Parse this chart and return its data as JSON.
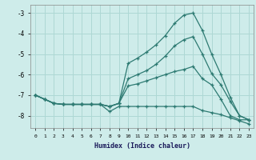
{
  "xlabel": "Humidex (Indice chaleur)",
  "bg_color": "#ceecea",
  "grid_color": "#aed8d4",
  "line_color": "#2d7a72",
  "xlim": [
    -0.5,
    23.5
  ],
  "ylim": [
    -8.6,
    -2.6
  ],
  "xticks": [
    0,
    1,
    2,
    3,
    4,
    5,
    6,
    7,
    8,
    9,
    10,
    11,
    12,
    13,
    14,
    15,
    16,
    17,
    18,
    19,
    20,
    21,
    22,
    23
  ],
  "yticks": [
    -8,
    -7,
    -6,
    -5,
    -4,
    -3
  ],
  "lines": [
    {
      "x": [
        0,
        1,
        2,
        3,
        4,
        5,
        6,
        7,
        8,
        9,
        10,
        11,
        12,
        13,
        14,
        15,
        16,
        17,
        18,
        19,
        20,
        21,
        22,
        23
      ],
      "y": [
        -7.0,
        -7.2,
        -7.4,
        -7.45,
        -7.45,
        -7.45,
        -7.45,
        -7.45,
        -7.55,
        -7.4,
        -5.45,
        -5.2,
        -4.9,
        -4.55,
        -4.1,
        -3.5,
        -3.1,
        -3.0,
        -3.85,
        -5.0,
        -6.0,
        -7.1,
        -8.0,
        -8.2
      ]
    },
    {
      "x": [
        0,
        1,
        2,
        3,
        4,
        5,
        6,
        7,
        8,
        9,
        10,
        11,
        12,
        13,
        14,
        15,
        16,
        17,
        18,
        19,
        20,
        21,
        22,
        23
      ],
      "y": [
        -7.0,
        -7.2,
        -7.4,
        -7.45,
        -7.45,
        -7.45,
        -7.45,
        -7.45,
        -7.55,
        -7.4,
        -6.2,
        -6.0,
        -5.8,
        -5.5,
        -5.1,
        -4.6,
        -4.3,
        -4.15,
        -5.0,
        -5.95,
        -6.5,
        -7.3,
        -8.0,
        -8.2
      ]
    },
    {
      "x": [
        0,
        1,
        2,
        3,
        4,
        5,
        6,
        7,
        8,
        9,
        10,
        11,
        12,
        13,
        14,
        15,
        16,
        17,
        18,
        19,
        20,
        21,
        22,
        23
      ],
      "y": [
        -7.0,
        -7.2,
        -7.4,
        -7.45,
        -7.45,
        -7.45,
        -7.45,
        -7.45,
        -7.55,
        -7.4,
        -6.55,
        -6.45,
        -6.3,
        -6.15,
        -6.0,
        -5.85,
        -5.75,
        -5.6,
        -6.2,
        -6.5,
        -7.2,
        -8.0,
        -8.2,
        -8.2
      ]
    },
    {
      "x": [
        0,
        1,
        2,
        3,
        4,
        5,
        6,
        7,
        8,
        9,
        10,
        11,
        12,
        13,
        14,
        15,
        16,
        17,
        18,
        19,
        20,
        21,
        22,
        23
      ],
      "y": [
        -7.0,
        -7.2,
        -7.4,
        -7.45,
        -7.45,
        -7.45,
        -7.45,
        -7.45,
        -7.8,
        -7.55,
        -7.55,
        -7.55,
        -7.55,
        -7.55,
        -7.55,
        -7.55,
        -7.55,
        -7.55,
        -7.75,
        -7.85,
        -7.95,
        -8.1,
        -8.25,
        -8.4
      ]
    }
  ]
}
